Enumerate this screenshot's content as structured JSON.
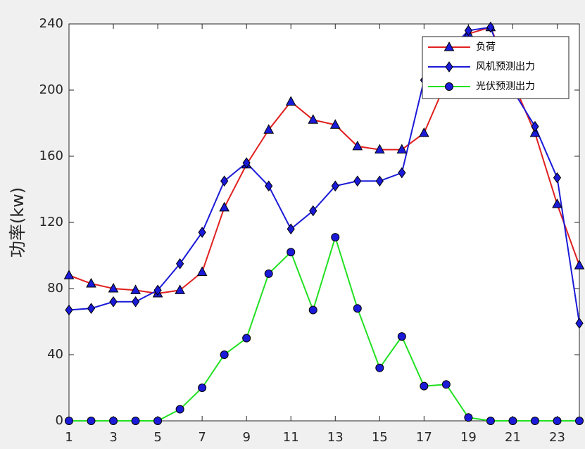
{
  "chart_data": {
    "type": "line",
    "ylabel": "功率(kw)",
    "x": [
      1,
      2,
      3,
      4,
      5,
      6,
      7,
      8,
      9,
      10,
      11,
      12,
      13,
      14,
      15,
      16,
      17,
      18,
      19,
      20,
      21,
      22,
      23,
      24
    ],
    "xlim": [
      1,
      24
    ],
    "xticks": [
      1,
      3,
      5,
      7,
      9,
      11,
      13,
      15,
      17,
      19,
      21,
      23
    ],
    "ylim": [
      0,
      240
    ],
    "yticks": [
      0,
      40,
      80,
      120,
      160,
      200,
      240
    ],
    "legend": "upper right",
    "marker_face_color": "#1a1ad8",
    "series": [
      {
        "name": "负荷",
        "color": "#e02020",
        "marker": "triangle",
        "values": [
          88,
          83,
          80,
          79,
          77,
          79,
          90,
          129,
          155,
          176,
          193,
          182,
          179,
          166,
          164,
          164,
          174,
          205,
          234,
          238,
          205,
          174,
          131,
          94
        ]
      },
      {
        "name": "风机预测出力",
        "color": "#1a1ad8",
        "marker": "diamond",
        "values": [
          67,
          68,
          72,
          72,
          79,
          95,
          114,
          145,
          156,
          142,
          116,
          127,
          142,
          145,
          145,
          150,
          206,
          222,
          236,
          238,
          200,
          178,
          147,
          59
        ]
      },
      {
        "name": "光伏预测出力",
        "color": "#22e022",
        "marker": "circle",
        "values": [
          0,
          0,
          0,
          0,
          0,
          7,
          20,
          40,
          50,
          89,
          102,
          67,
          111,
          68,
          32,
          51,
          21,
          22,
          2,
          0,
          0,
          0,
          0,
          0
        ]
      }
    ]
  }
}
